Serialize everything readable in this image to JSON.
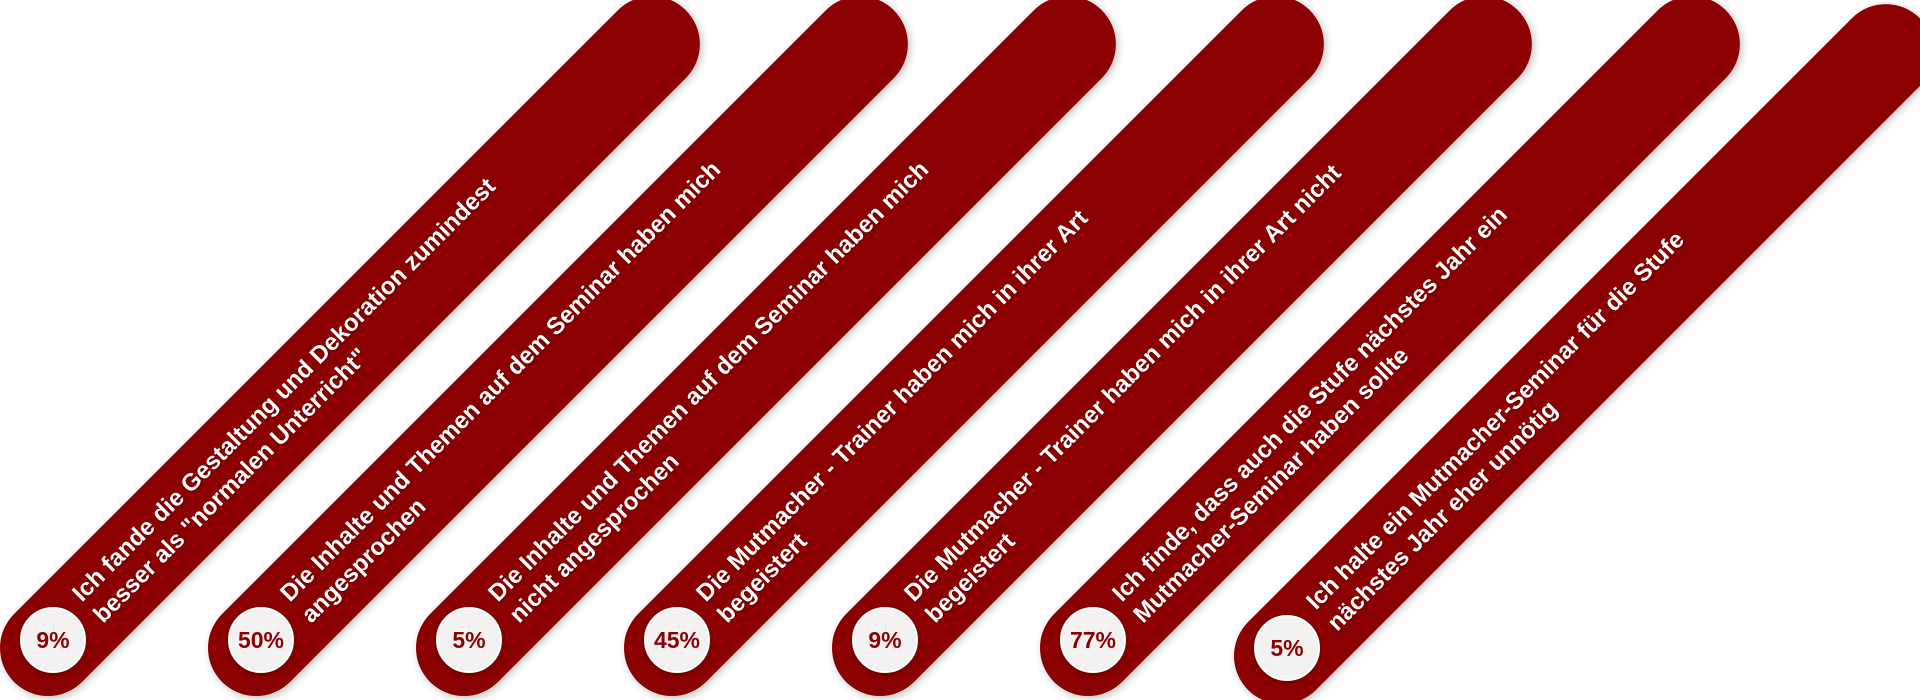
{
  "statements": [
    {
      "text": "Ich fande die Gestaltung und Dekoration zumindest besser als \"normalen Unterricht\"",
      "percent": "9%"
    },
    {
      "text": "Die Inhalte und Themen auf dem Seminar haben mich angesprochen",
      "percent": "50%"
    },
    {
      "text": "Die Inhalte und Themen auf dem Seminar haben mich nicht angesprochen",
      "percent": "5%"
    },
    {
      "text": "Die Mutmacher - Trainer  haben mich in ihrer Art begeistert",
      "percent": "45%"
    },
    {
      "text": "Die Mutmacher - Trainer  haben mich in ihrer Art nicht begeistert",
      "percent": "9%"
    },
    {
      "text": "Ich finde, dass auch die Stufe nächstes Jahr ein Mutmacher-Seminar haben sollte",
      "percent": "77%"
    },
    {
      "text": "Ich halte ein Mutmacher-Seminar für die Stufe nächstes Jahr eher unnötig",
      "percent": "5%"
    }
  ],
  "colors": {
    "pill": "#8b0000",
    "badge_bg": "#f4f1f1",
    "badge_text": "#8b0000"
  }
}
